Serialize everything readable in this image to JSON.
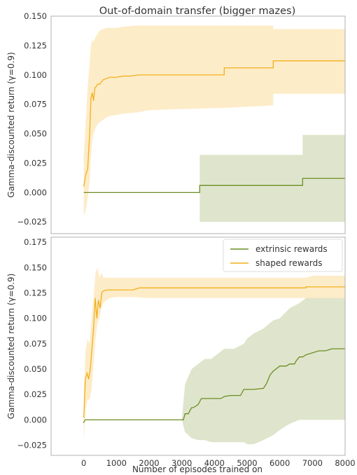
{
  "figure": {
    "title": "Out-of-domain transfer (bigger mazes)",
    "xlabel": "Number of episodes trained on"
  },
  "colors": {
    "extrinsic": "#6b8e23",
    "extrinsic_band": "#dfe5cc",
    "shaped": "#f2b01e",
    "shaped_band": "#fdecc8",
    "axes": "#b0b0b0"
  },
  "chart_data": [
    {
      "type": "line",
      "title": "Out-of-domain transfer (bigger mazes)",
      "xlabel": "",
      "ylabel": "Gamma-discounted return (γ=0.9)",
      "xlim": [
        -1000,
        8000
      ],
      "ylim": [
        -0.035,
        0.15
      ],
      "xticks": [],
      "yticks": [
        -0.025,
        0,
        0.025,
        0.05,
        0.075,
        0.1,
        0.125,
        0.15
      ],
      "ytick_labels": [
        "−0.025",
        "0.000",
        "0.025",
        "0.050",
        "0.075",
        "0.100",
        "0.125",
        "0.150"
      ],
      "legend": false,
      "grid": false,
      "series": [
        {
          "key": "extrinsic",
          "x": [
            0,
            3550,
            3550,
            6700,
            6700,
            8000
          ],
          "y": [
            0,
            0,
            0.006,
            0.006,
            0.012,
            0.012
          ],
          "band_x": [
            3550,
            6700,
            6700,
            8000
          ],
          "band_low": [
            -0.025,
            -0.025,
            -0.025,
            -0.025
          ],
          "band_high": [
            0.032,
            0.032,
            0.049,
            0.049
          ]
        },
        {
          "key": "shaped",
          "x": [
            0,
            60,
            120,
            180,
            220,
            260,
            300,
            340,
            380,
            420,
            480,
            540,
            600,
            700,
            800,
            1000,
            1200,
            1400,
            1700,
            2000,
            2500,
            3000,
            3500,
            4300,
            4300,
            5800,
            5800,
            8000
          ],
          "y": [
            0.005,
            0.015,
            0.02,
            0.05,
            0.08,
            0.085,
            0.078,
            0.089,
            0.09,
            0.092,
            0.092,
            0.094,
            0.096,
            0.097,
            0.098,
            0.098,
            0.099,
            0.099,
            0.1,
            0.1,
            0.1,
            0.1,
            0.1,
            0.1,
            0.106,
            0.106,
            0.112,
            0.112
          ],
          "band_x": [
            0,
            60,
            120,
            180,
            220,
            260,
            300,
            360,
            420,
            500,
            600,
            700,
            800,
            1000,
            1200,
            1600,
            2000,
            3000,
            4300,
            4300,
            5800,
            5800,
            8000
          ],
          "band_low": [
            -0.02,
            -0.015,
            -0.005,
            0.01,
            0.03,
            0.045,
            0.05,
            0.055,
            0.058,
            0.06,
            0.062,
            0.064,
            0.065,
            0.066,
            0.067,
            0.068,
            0.07,
            0.071,
            0.072,
            0.072,
            0.074,
            0.084,
            0.084
          ],
          "band_high": [
            0.03,
            0.06,
            0.09,
            0.11,
            0.125,
            0.13,
            0.128,
            0.132,
            0.135,
            0.138,
            0.139,
            0.14,
            0.14,
            0.14,
            0.141,
            0.142,
            0.142,
            0.142,
            0.142,
            0.142,
            0.142,
            0.139,
            0.139
          ]
        }
      ]
    },
    {
      "type": "line",
      "title": "",
      "xlabel": "Number of episodes trained on",
      "ylabel": "Gamma-discounted return (γ=0.9)",
      "xlim": [
        -1000,
        8000
      ],
      "ylim": [
        -0.035,
        0.18
      ],
      "xticks": [
        0,
        1000,
        2000,
        3000,
        4000,
        5000,
        6000,
        7000,
        8000
      ],
      "xtick_labels": [
        "0",
        "1000",
        "2000",
        "3000",
        "4000",
        "5000",
        "6000",
        "7000",
        "8000"
      ],
      "yticks": [
        -0.025,
        0,
        0.025,
        0.05,
        0.075,
        0.1,
        0.125,
        0.15,
        0.175
      ],
      "ytick_labels": [
        "−0.025",
        "0.000",
        "0.025",
        "0.050",
        "0.075",
        "0.100",
        "0.125",
        "0.150",
        "0.175"
      ],
      "legend": true,
      "legend_placement": "upper-right",
      "grid": false,
      "series": [
        {
          "key": "extrinsic",
          "name": "extrinsic rewards",
          "x": [
            -10,
            40,
            100,
            3000,
            3050,
            3100,
            3150,
            3200,
            3300,
            3350,
            3500,
            3600,
            3700,
            3900,
            4200,
            4300,
            4500,
            4800,
            4900,
            5200,
            5500,
            5600,
            5650,
            5700,
            5800,
            6000,
            6200,
            6300,
            6450,
            6500,
            6600,
            6700,
            6800,
            7000,
            7200,
            7400,
            7600,
            8000
          ],
          "y": [
            -0.003,
            0.0,
            0.0,
            0.0,
            0.0,
            0.006,
            0.006,
            0.006,
            0.012,
            0.012,
            0.015,
            0.021,
            0.021,
            0.021,
            0.021,
            0.023,
            0.024,
            0.024,
            0.03,
            0.03,
            0.031,
            0.036,
            0.04,
            0.044,
            0.048,
            0.053,
            0.053,
            0.055,
            0.055,
            0.058,
            0.062,
            0.062,
            0.064,
            0.066,
            0.068,
            0.068,
            0.07,
            0.07
          ],
          "band_x": [
            3000,
            3100,
            3300,
            3500,
            3700,
            3900,
            4300,
            4600,
            4900,
            5000,
            5200,
            5500,
            5800,
            6000,
            6300,
            6600,
            7000,
            7200,
            7600,
            8000
          ],
          "band_low": [
            0.0,
            -0.012,
            -0.018,
            -0.02,
            -0.02,
            -0.022,
            -0.022,
            -0.022,
            -0.022,
            -0.024,
            -0.024,
            -0.02,
            -0.015,
            -0.01,
            -0.004,
            0.0,
            0.0,
            0.0,
            0.0,
            0.0
          ],
          "band_high": [
            0.0,
            0.035,
            0.05,
            0.055,
            0.06,
            0.06,
            0.07,
            0.07,
            0.075,
            0.08,
            0.085,
            0.09,
            0.098,
            0.1,
            0.11,
            0.115,
            0.125,
            0.13,
            0.135,
            0.138
          ]
        },
        {
          "key": "shaped",
          "name": "shaped rewards",
          "x": [
            0,
            50,
            100,
            150,
            200,
            250,
            300,
            350,
            400,
            450,
            500,
            550,
            600,
            700,
            800,
            1000,
            1500,
            1700,
            2000,
            3000,
            4000,
            5000,
            6000,
            6800,
            6800,
            7000,
            8000
          ],
          "y": [
            0.002,
            0.04,
            0.046,
            0.04,
            0.05,
            0.07,
            0.09,
            0.12,
            0.1,
            0.118,
            0.11,
            0.125,
            0.127,
            0.128,
            0.128,
            0.128,
            0.128,
            0.13,
            0.13,
            0.13,
            0.13,
            0.13,
            0.13,
            0.13,
            0.131,
            0.131,
            0.131
          ],
          "band_x": [
            0,
            60,
            120,
            180,
            240,
            300,
            360,
            420,
            480,
            540,
            600,
            700,
            800,
            1000,
            1500,
            2000,
            3000,
            4000,
            5000,
            6000,
            6800,
            7000,
            8000
          ],
          "band_low": [
            -0.02,
            0.01,
            0.02,
            0.02,
            0.03,
            0.055,
            0.08,
            0.095,
            0.1,
            0.11,
            0.115,
            0.118,
            0.12,
            0.121,
            0.121,
            0.12,
            0.12,
            0.12,
            0.12,
            0.12,
            0.12,
            0.12,
            0.12
          ],
          "band_high": [
            0.03,
            0.07,
            0.08,
            0.075,
            0.1,
            0.12,
            0.145,
            0.15,
            0.14,
            0.145,
            0.14,
            0.14,
            0.14,
            0.14,
            0.14,
            0.14,
            0.14,
            0.14,
            0.14,
            0.14,
            0.14,
            0.142,
            0.142
          ]
        }
      ]
    }
  ]
}
